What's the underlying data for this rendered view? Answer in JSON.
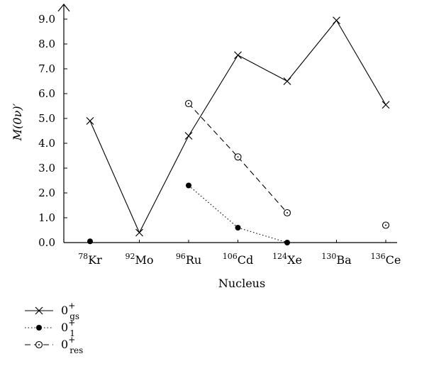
{
  "chart_data": {
    "type": "line",
    "title": "",
    "xlabel": "Nucleus",
    "ylabel": "M(0ν)′",
    "ylim": [
      0,
      9.0
    ],
    "yticks": [
      "0.0",
      "1.0",
      "2.0",
      "3.0",
      "4.0",
      "5.0",
      "6.0",
      "7.0",
      "8.0",
      "9.0"
    ],
    "categories": [
      {
        "mass": "78",
        "symbol": "Kr"
      },
      {
        "mass": "92",
        "symbol": "Mo"
      },
      {
        "mass": "96",
        "symbol": "Ru"
      },
      {
        "mass": "106",
        "symbol": "Cd"
      },
      {
        "mass": "124",
        "symbol": "Xe"
      },
      {
        "mass": "130",
        "symbol": "Ba"
      },
      {
        "mass": "136",
        "symbol": "Ce"
      }
    ],
    "series": [
      {
        "name": "0+gs",
        "label_main": "0",
        "label_sup": "+",
        "label_sub": "gs",
        "marker": "x",
        "line": "solid",
        "values": [
          4.9,
          0.4,
          4.3,
          7.55,
          6.5,
          8.95,
          5.55
        ]
      },
      {
        "name": "0+1",
        "label_main": "0",
        "label_sup": "+",
        "label_sub": "1",
        "marker": "filled-circle",
        "line": "dotted",
        "values": [
          0.05,
          null,
          2.3,
          0.6,
          0.0,
          null,
          null
        ]
      },
      {
        "name": "0+res",
        "label_main": "0",
        "label_sup": "+",
        "label_sub": "res",
        "marker": "dotted-circle",
        "line": "dashed",
        "values": [
          null,
          null,
          5.6,
          3.45,
          1.2,
          null,
          0.7
        ]
      }
    ],
    "legend_position": "bottom-left",
    "grid": false
  }
}
